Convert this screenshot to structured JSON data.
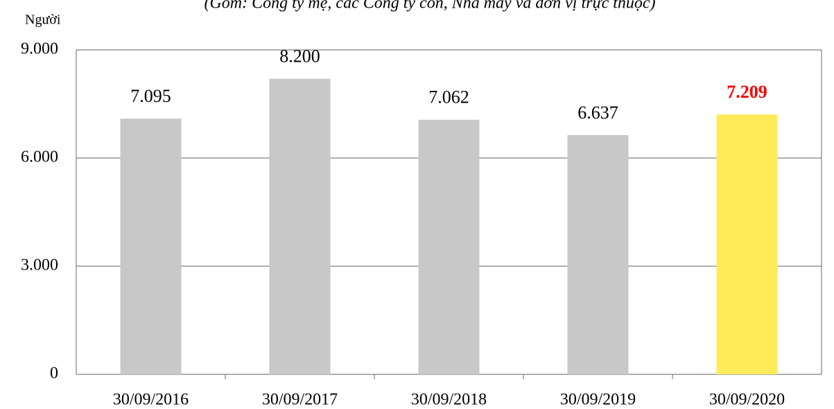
{
  "chart_data": {
    "type": "bar",
    "subtitle": "(Gồm: Công ty mẹ, các Công ty con, Nhà máy và đơn vị trực thuộc)",
    "y_label": "Người",
    "categories": [
      "30/09/2016",
      "30/09/2017",
      "30/09/2018",
      "30/09/2019",
      "30/09/2020"
    ],
    "values": [
      7095,
      8200,
      7062,
      6637,
      7209
    ],
    "value_labels": [
      "7.095",
      "8.200",
      "7.062",
      "6.637",
      "7.209"
    ],
    "colors": [
      "#c8c8c8",
      "#c8c8c8",
      "#c8c8c8",
      "#c8c8c8",
      "#ffeb5a"
    ],
    "value_label_colors": [
      "#000000",
      "#000000",
      "#000000",
      "#000000",
      "#ff0000"
    ],
    "ylim": [
      0,
      9000
    ],
    "yticks": [
      0,
      {
        "value": 3000,
        "label": "3.000"
      },
      {
        "value": 6000,
        "label": "6.000"
      },
      {
        "value": 9000,
        "label": "9.000"
      }
    ],
    "grid": true
  }
}
